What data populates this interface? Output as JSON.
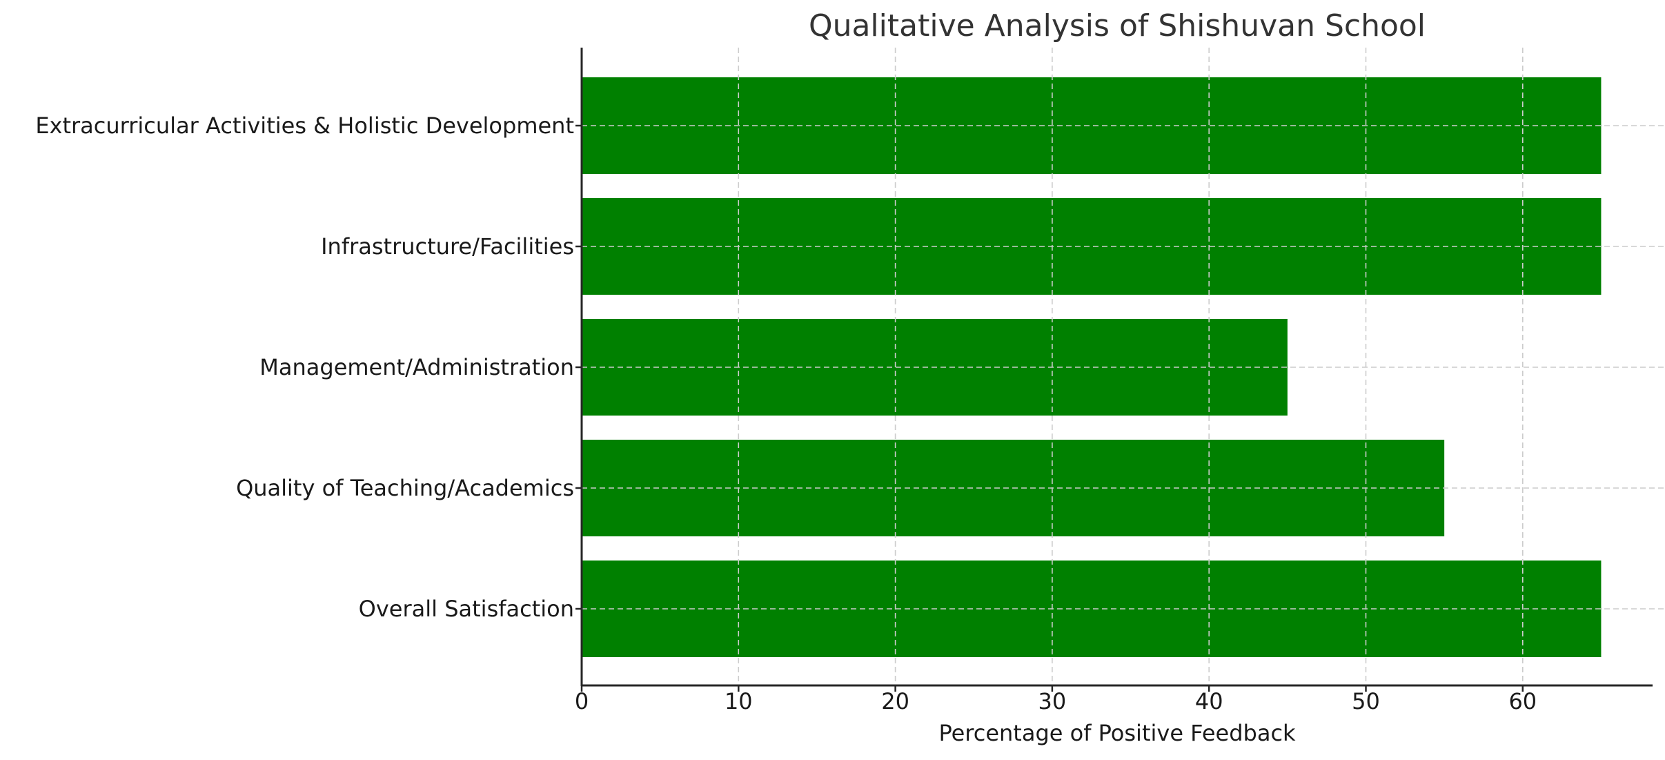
{
  "chart_data": {
    "type": "bar",
    "orientation": "horizontal",
    "title": "Qualitative Analysis of Shishuvan School",
    "xlabel": "Percentage of Positive Feedback",
    "ylabel": "",
    "categories": [
      "Overall Satisfaction",
      "Quality of Teaching/Academics",
      "Management/Administration",
      "Infrastructure/Facilities",
      "Extracurricular Activities & Holistic Development"
    ],
    "values": [
      65,
      55,
      45,
      65,
      65
    ],
    "xlim": [
      0,
      68.2
    ],
    "xticks": [
      "0",
      "10",
      "20",
      "30",
      "40",
      "50",
      "60"
    ],
    "grid": true,
    "grid_style": "dashed",
    "legend": null,
    "bar_color": "#008000"
  }
}
